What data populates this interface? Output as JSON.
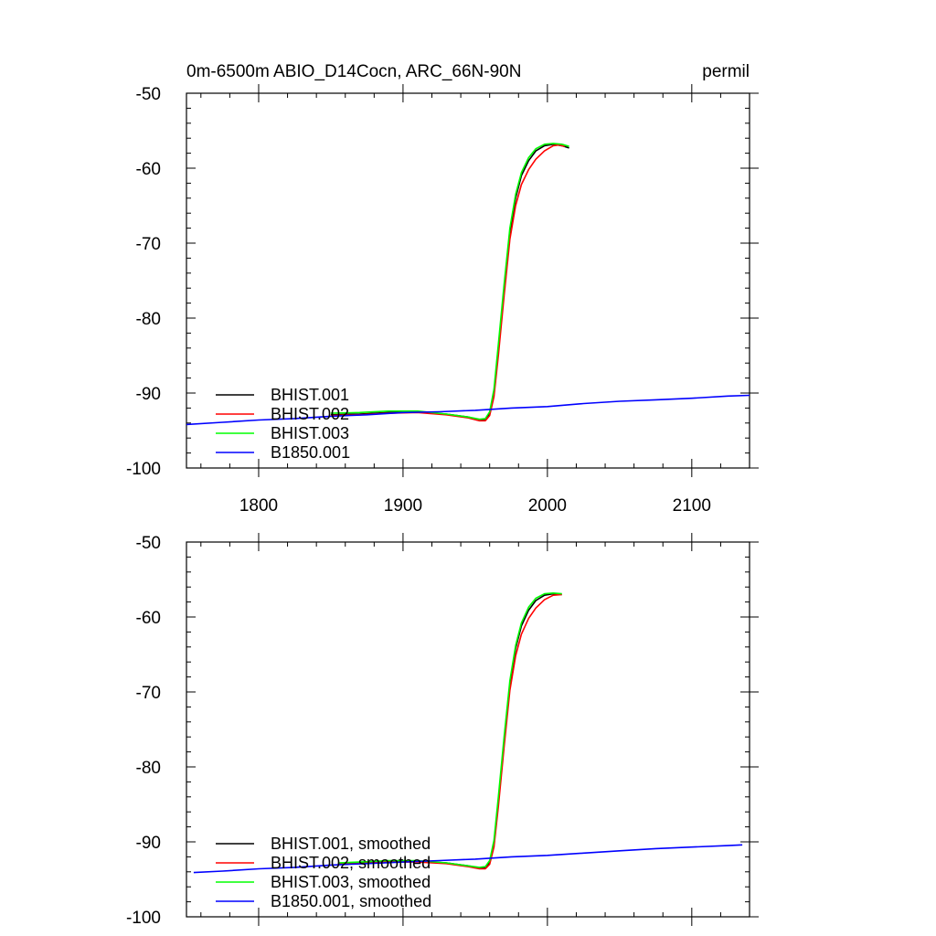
{
  "chart_data": [
    {
      "type": "line",
      "title": "0m-6500m ABIO_D14Cocn, ARC_66N-90N",
      "units": "permil",
      "xlim": [
        1750,
        2140
      ],
      "ylim": [
        -100,
        -50
      ],
      "xticks": [
        1800,
        1900,
        2000,
        2100
      ],
      "yticks": [
        -100,
        -90,
        -80,
        -70,
        -60,
        -50
      ],
      "show_x_tick_labels": true,
      "grid": false,
      "legend_placement": "bottom-left",
      "series": [
        {
          "name": "BHIST.001",
          "color": "#000000",
          "points": [
            [
              1850,
              -92.9
            ],
            [
              1870,
              -92.8
            ],
            [
              1890,
              -92.6
            ],
            [
              1910,
              -92.5
            ],
            [
              1930,
              -92.8
            ],
            [
              1945,
              -93.2
            ],
            [
              1953,
              -93.6
            ],
            [
              1957,
              -93.6
            ],
            [
              1960,
              -92.8
            ],
            [
              1963,
              -90.0
            ],
            [
              1966,
              -84.0
            ],
            [
              1970,
              -76.0
            ],
            [
              1974,
              -68.5
            ],
            [
              1978,
              -64.0
            ],
            [
              1982,
              -61.0
            ],
            [
              1987,
              -59.0
            ],
            [
              1992,
              -57.7
            ],
            [
              1998,
              -57.0
            ],
            [
              2004,
              -56.8
            ],
            [
              2010,
              -57.0
            ],
            [
              2015,
              -57.3
            ]
          ]
        },
        {
          "name": "BHIST.002",
          "color": "#ff0000",
          "points": [
            [
              1850,
              -93.0
            ],
            [
              1870,
              -92.9
            ],
            [
              1890,
              -92.7
            ],
            [
              1910,
              -92.6
            ],
            [
              1930,
              -92.9
            ],
            [
              1945,
              -93.3
            ],
            [
              1953,
              -93.7
            ],
            [
              1957,
              -93.7
            ],
            [
              1960,
              -93.0
            ],
            [
              1963,
              -90.5
            ],
            [
              1966,
              -85.0
            ],
            [
              1970,
              -77.0
            ],
            [
              1974,
              -69.5
            ],
            [
              1978,
              -65.0
            ],
            [
              1982,
              -62.2
            ],
            [
              1987,
              -60.2
            ],
            [
              1992,
              -58.8
            ],
            [
              1998,
              -57.7
            ],
            [
              2004,
              -57.0
            ],
            [
              2008,
              -56.9
            ],
            [
              2012,
              -57.1
            ]
          ]
        },
        {
          "name": "BHIST.003",
          "color": "#00ff00",
          "points": [
            [
              1850,
              -92.7
            ],
            [
              1870,
              -92.6
            ],
            [
              1890,
              -92.4
            ],
            [
              1910,
              -92.4
            ],
            [
              1930,
              -92.8
            ],
            [
              1945,
              -93.2
            ],
            [
              1953,
              -93.5
            ],
            [
              1957,
              -93.4
            ],
            [
              1960,
              -92.5
            ],
            [
              1963,
              -89.5
            ],
            [
              1966,
              -83.5
            ],
            [
              1970,
              -75.5
            ],
            [
              1974,
              -68.0
            ],
            [
              1978,
              -63.5
            ],
            [
              1982,
              -60.6
            ],
            [
              1987,
              -58.6
            ],
            [
              1992,
              -57.4
            ],
            [
              1998,
              -56.8
            ],
            [
              2004,
              -56.7
            ],
            [
              2010,
              -56.8
            ],
            [
              2015,
              -57.1
            ]
          ]
        },
        {
          "name": "B1850.001",
          "color": "#0000ff",
          "points": [
            [
              1750,
              -94.2
            ],
            [
              1775,
              -93.9
            ],
            [
              1800,
              -93.6
            ],
            [
              1825,
              -93.4
            ],
            [
              1850,
              -93.1
            ],
            [
              1875,
              -92.9
            ],
            [
              1900,
              -92.6
            ],
            [
              1925,
              -92.5
            ],
            [
              1950,
              -92.3
            ],
            [
              1975,
              -92.0
            ],
            [
              2000,
              -91.8
            ],
            [
              2025,
              -91.4
            ],
            [
              2050,
              -91.1
            ],
            [
              2075,
              -90.9
            ],
            [
              2100,
              -90.7
            ],
            [
              2125,
              -90.4
            ],
            [
              2140,
              -90.3
            ]
          ]
        }
      ]
    },
    {
      "type": "line",
      "title": "",
      "units": "",
      "xlim": [
        1750,
        2140
      ],
      "ylim": [
        -100,
        -50
      ],
      "xticks": [
        1800,
        1900,
        2000,
        2100
      ],
      "yticks": [
        -100,
        -90,
        -80,
        -70,
        -60,
        -50
      ],
      "show_x_tick_labels": false,
      "grid": false,
      "legend_placement": "bottom-left",
      "series": [
        {
          "name": "BHIST.001, smoothed",
          "color": "#000000",
          "points": [
            [
              1855,
              -92.9
            ],
            [
              1870,
              -92.8
            ],
            [
              1890,
              -92.6
            ],
            [
              1910,
              -92.6
            ],
            [
              1930,
              -92.8
            ],
            [
              1945,
              -93.2
            ],
            [
              1953,
              -93.5
            ],
            [
              1957,
              -93.5
            ],
            [
              1960,
              -92.8
            ],
            [
              1963,
              -90.2
            ],
            [
              1966,
              -84.5
            ],
            [
              1970,
              -76.5
            ],
            [
              1974,
              -69.0
            ],
            [
              1978,
              -64.2
            ],
            [
              1982,
              -61.2
            ],
            [
              1987,
              -59.1
            ],
            [
              1992,
              -57.8
            ],
            [
              1998,
              -57.1
            ],
            [
              2004,
              -56.9
            ],
            [
              2010,
              -57.0
            ]
          ]
        },
        {
          "name": "BHIST.002, smoothed",
          "color": "#ff0000",
          "points": [
            [
              1855,
              -93.0
            ],
            [
              1870,
              -92.9
            ],
            [
              1890,
              -92.7
            ],
            [
              1910,
              -92.7
            ],
            [
              1930,
              -92.9
            ],
            [
              1945,
              -93.3
            ],
            [
              1953,
              -93.6
            ],
            [
              1957,
              -93.6
            ],
            [
              1960,
              -93.0
            ],
            [
              1963,
              -90.7
            ],
            [
              1966,
              -85.3
            ],
            [
              1970,
              -77.3
            ],
            [
              1974,
              -69.8
            ],
            [
              1978,
              -65.2
            ],
            [
              1982,
              -62.3
            ],
            [
              1987,
              -60.2
            ],
            [
              1992,
              -58.8
            ],
            [
              1998,
              -57.7
            ],
            [
              2004,
              -57.1
            ],
            [
              2010,
              -57.0
            ]
          ]
        },
        {
          "name": "BHIST.003, smoothed",
          "color": "#00ff00",
          "points": [
            [
              1855,
              -92.8
            ],
            [
              1870,
              -92.7
            ],
            [
              1890,
              -92.5
            ],
            [
              1910,
              -92.5
            ],
            [
              1930,
              -92.8
            ],
            [
              1945,
              -93.2
            ],
            [
              1953,
              -93.4
            ],
            [
              1957,
              -93.3
            ],
            [
              1960,
              -92.5
            ],
            [
              1963,
              -89.8
            ],
            [
              1966,
              -84.0
            ],
            [
              1970,
              -76.0
            ],
            [
              1974,
              -68.5
            ],
            [
              1978,
              -63.8
            ],
            [
              1982,
              -60.8
            ],
            [
              1987,
              -58.7
            ],
            [
              1992,
              -57.5
            ],
            [
              1998,
              -56.9
            ],
            [
              2004,
              -56.8
            ],
            [
              2010,
              -56.9
            ]
          ]
        },
        {
          "name": "B1850.001, smoothed",
          "color": "#0000ff",
          "points": [
            [
              1755,
              -94.1
            ],
            [
              1775,
              -93.9
            ],
            [
              1800,
              -93.6
            ],
            [
              1825,
              -93.4
            ],
            [
              1850,
              -93.1
            ],
            [
              1875,
              -92.9
            ],
            [
              1900,
              -92.7
            ],
            [
              1925,
              -92.5
            ],
            [
              1950,
              -92.3
            ],
            [
              1975,
              -92.0
            ],
            [
              2000,
              -91.8
            ],
            [
              2025,
              -91.5
            ],
            [
              2050,
              -91.2
            ],
            [
              2075,
              -90.9
            ],
            [
              2100,
              -90.7
            ],
            [
              2125,
              -90.5
            ],
            [
              2135,
              -90.4
            ]
          ]
        }
      ]
    }
  ]
}
